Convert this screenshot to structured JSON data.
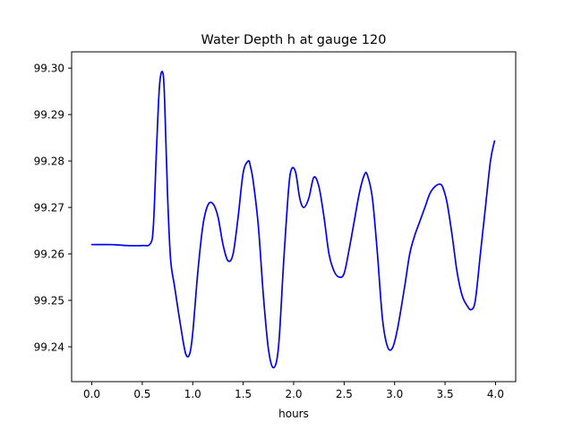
{
  "chart_data": {
    "type": "line",
    "title": "Water Depth h at gauge 120",
    "xlabel": "hours",
    "ylabel": "",
    "xlim": [
      -0.2,
      4.2
    ],
    "ylim": [
      99.2325,
      99.3035
    ],
    "xticks": [
      0.0,
      0.5,
      1.0,
      1.5,
      2.0,
      2.5,
      3.0,
      3.5,
      4.0
    ],
    "xtick_labels": [
      "0.0",
      "0.5",
      "1.0",
      "1.5",
      "2.0",
      "2.5",
      "3.0",
      "3.5",
      "4.0"
    ],
    "yticks": [
      99.24,
      99.25,
      99.26,
      99.27,
      99.28,
      99.29,
      99.3
    ],
    "ytick_labels": [
      "99.24",
      "99.25",
      "99.26",
      "99.27",
      "99.28",
      "99.29",
      "99.30"
    ],
    "grid": false,
    "series": [
      {
        "color": "#0000ff",
        "x": [
          0.0,
          0.2,
          0.35,
          0.5,
          0.58,
          0.61,
          0.64,
          0.67,
          0.7,
          0.72,
          0.75,
          0.78,
          0.82,
          0.88,
          0.93,
          0.97,
          1.0,
          1.05,
          1.1,
          1.15,
          1.2,
          1.25,
          1.3,
          1.35,
          1.4,
          1.45,
          1.5,
          1.55,
          1.57,
          1.6,
          1.65,
          1.7,
          1.75,
          1.8,
          1.85,
          1.9,
          1.95,
          1.98,
          2.02,
          2.06,
          2.1,
          2.15,
          2.2,
          2.25,
          2.3,
          2.35,
          2.4,
          2.45,
          2.5,
          2.55,
          2.6,
          2.65,
          2.7,
          2.73,
          2.78,
          2.83,
          2.88,
          2.93,
          2.98,
          3.03,
          3.1,
          3.15,
          3.2,
          3.25,
          3.3,
          3.35,
          3.4,
          3.45,
          3.48,
          3.52,
          3.57,
          3.62,
          3.67,
          3.72,
          3.76,
          3.8,
          3.85,
          3.9,
          3.95,
          3.99
        ],
        "y": [
          99.262,
          99.262,
          99.2618,
          99.2618,
          99.2622,
          99.266,
          99.282,
          99.296,
          99.2992,
          99.294,
          99.273,
          99.259,
          99.253,
          99.2445,
          99.2385,
          99.2385,
          99.243,
          99.256,
          99.266,
          99.2705,
          99.2708,
          99.268,
          99.262,
          99.2585,
          99.26,
          99.268,
          99.2775,
          99.28,
          99.279,
          99.2755,
          99.266,
          99.251,
          99.2395,
          99.2355,
          99.24,
          99.258,
          99.274,
          99.2783,
          99.2775,
          99.272,
          99.27,
          99.272,
          99.2765,
          99.2745,
          99.268,
          99.26,
          99.2563,
          99.255,
          99.2558,
          99.261,
          99.267,
          99.273,
          99.277,
          99.277,
          99.272,
          99.26,
          99.246,
          99.24,
          99.2398,
          99.244,
          99.253,
          99.26,
          99.264,
          99.267,
          99.27,
          99.273,
          99.2745,
          99.275,
          99.2742,
          99.271,
          99.264,
          99.256,
          99.251,
          99.2488,
          99.248,
          99.25,
          99.26,
          99.27,
          99.28,
          99.2843
        ]
      }
    ]
  }
}
